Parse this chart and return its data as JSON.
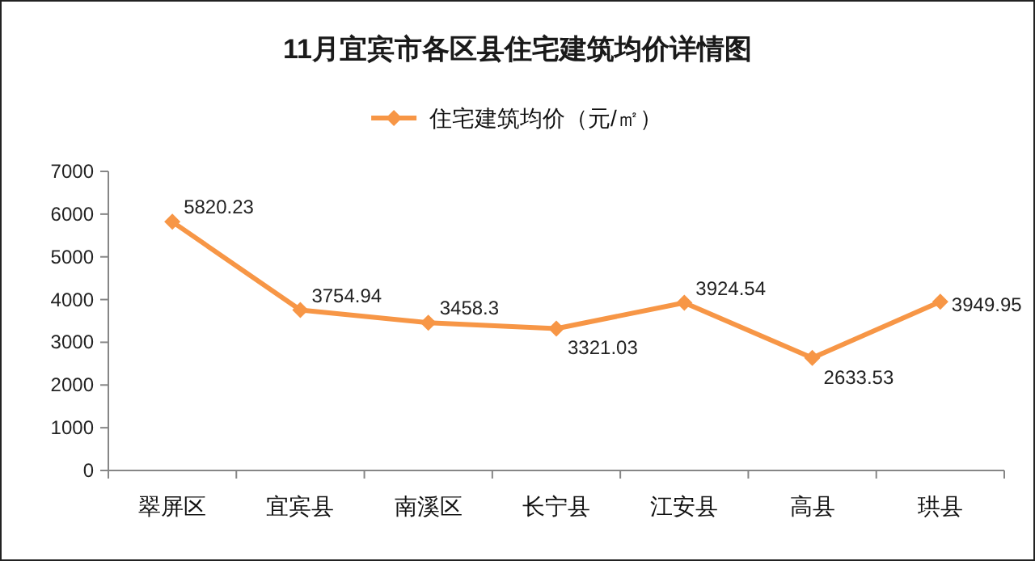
{
  "chart_data": {
    "type": "line",
    "title": "11月宜宾市各区县住宅建筑均价详情图",
    "categories": [
      "翠屏区",
      "宜宾县",
      "南溪区",
      "长宁县",
      "江安县",
      "高县",
      "珙县"
    ],
    "series": [
      {
        "name": "住宅建筑均价（元/㎡）",
        "color": "#f79646",
        "values": [
          5820.23,
          3754.94,
          3458.3,
          3321.03,
          3924.54,
          2633.53,
          3949.95
        ]
      }
    ],
    "ylim": [
      0,
      7000
    ],
    "yticks": [
      0,
      1000,
      2000,
      3000,
      4000,
      5000,
      6000,
      7000
    ],
    "grid": false,
    "legend": "top",
    "marker": "diamond",
    "line_style": "solid",
    "data_labels": true
  }
}
